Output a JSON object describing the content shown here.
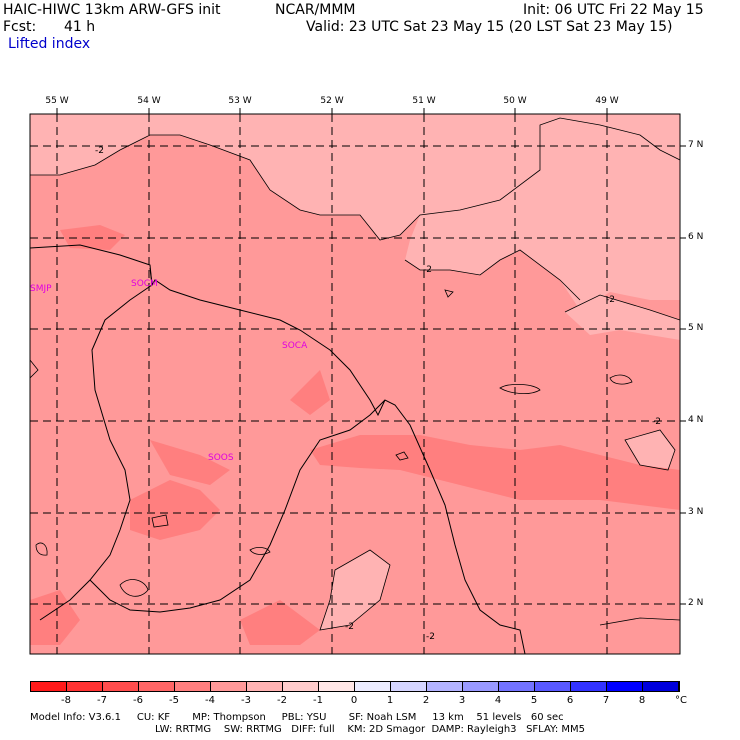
{
  "header": {
    "model": "HAIC-HIWC 13km ARW-GFS init",
    "org": "NCAR/MMM",
    "init": "Init: 06 UTC Fri 22 May 15",
    "fcst_label": "Fcst:",
    "fcst_value": "41 h",
    "valid": "Valid: 23 UTC Sat 23 May 15 (20 LST Sat 23 May 15)",
    "field": "Lifted index"
  },
  "map": {
    "lon_labels": [
      "55 W",
      "54 W",
      "53 W",
      "52 W",
      "51 W",
      "50 W",
      "49 W"
    ],
    "lat_labels": [
      "7 N",
      "6 N",
      "5 N",
      "4 N",
      "3 N",
      "2 N"
    ],
    "stations": [
      "SMJP",
      "SOCM",
      "SOCA",
      "SOOS"
    ],
    "contour_labels": [
      "-2",
      "-2",
      "-2",
      "-2",
      "-2",
      "-2",
      "-2"
    ]
  },
  "colorbar": {
    "ticks": [
      "-8",
      "-7",
      "-6",
      "-5",
      "-4",
      "-3",
      "-2",
      "-1",
      "0",
      "1",
      "2",
      "3",
      "4",
      "5",
      "6",
      "7",
      "8"
    ],
    "unit": "°C",
    "colors": [
      "#ff1a1a",
      "#ff3333",
      "#ff4d4d",
      "#ff6666",
      "#ff7f7f",
      "#ff9999",
      "#ffb3b3",
      "#ffcccc",
      "#ffe6e6",
      "#ececff",
      "#d5d5ff",
      "#b3b3ff",
      "#9999ff",
      "#7373ff",
      "#5959ff",
      "#3333ff",
      "#0000ff",
      "#0000dd"
    ]
  },
  "footer": {
    "line1": "Model Info: V3.6.1     CU: KF       MP: Thompson     PBL: YSU       SF: Noah LSM     13 km    51 levels   60 sec",
    "line2": "LW: RRTMG    SW: RRTMG   DIFF: full    KM: 2D Smagor  DAMP: Rayleigh3   SFLAY: MM5"
  }
}
